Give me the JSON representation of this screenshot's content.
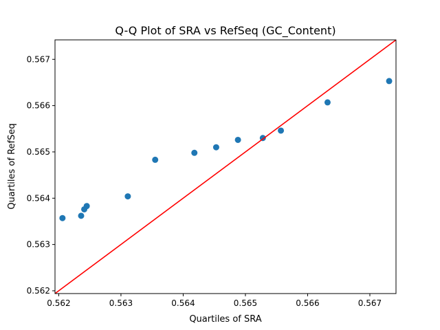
{
  "chart_data": {
    "type": "scatter",
    "title": "Q-Q Plot of SRA vs RefSeq (GC_Content)",
    "xlabel": "Quartiles of SRA",
    "ylabel": "Quartiles of RefSeq",
    "xlim": [
      0.56194,
      0.56742
    ],
    "ylim": [
      0.56194,
      0.56742
    ],
    "xticks": [
      "0.562",
      "0.563",
      "0.564",
      "0.565",
      "0.566",
      "0.567"
    ],
    "yticks": [
      "0.562",
      "0.563",
      "0.564",
      "0.565",
      "0.566",
      "0.567"
    ],
    "grid": false,
    "points": [
      {
        "x": 0.56206,
        "y": 0.56357
      },
      {
        "x": 0.56236,
        "y": 0.56362
      },
      {
        "x": 0.56241,
        "y": 0.56376
      },
      {
        "x": 0.56245,
        "y": 0.56383
      },
      {
        "x": 0.56311,
        "y": 0.56404
      },
      {
        "x": 0.56355,
        "y": 0.56483
      },
      {
        "x": 0.56418,
        "y": 0.56498
      },
      {
        "x": 0.56453,
        "y": 0.5651
      },
      {
        "x": 0.56488,
        "y": 0.56526
      },
      {
        "x": 0.56528,
        "y": 0.5653
      },
      {
        "x": 0.56557,
        "y": 0.56546
      },
      {
        "x": 0.56632,
        "y": 0.56607
      },
      {
        "x": 0.56731,
        "y": 0.56653
      }
    ],
    "reference_line": {
      "x": [
        0.56194,
        0.56742
      ],
      "y": [
        0.56194,
        0.56742
      ]
    },
    "colors": {
      "points": "#1f77b4",
      "reference_line": "#ff0000"
    }
  }
}
